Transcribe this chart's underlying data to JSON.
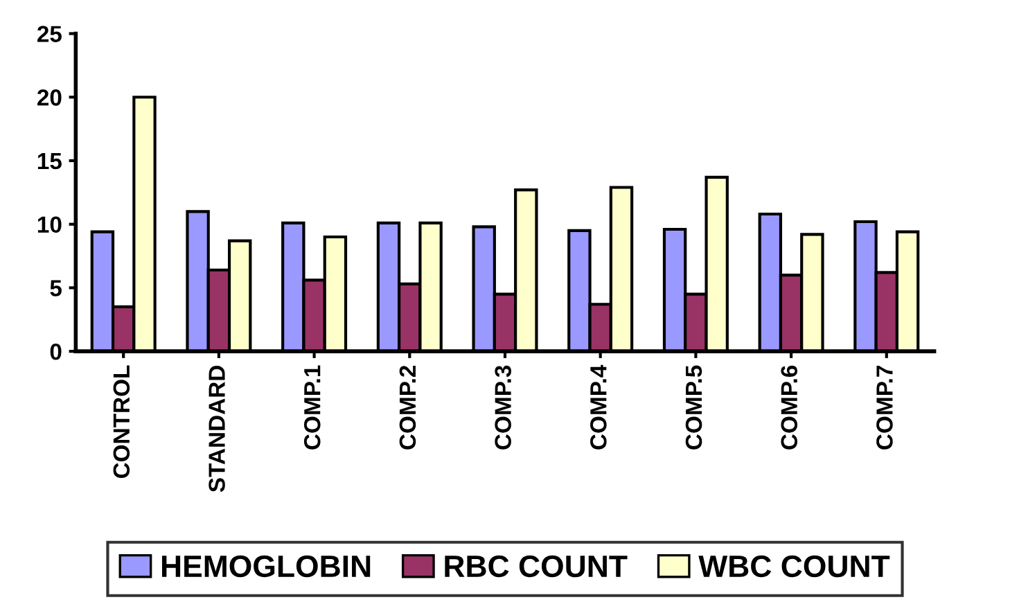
{
  "chart_data": {
    "type": "bar",
    "categories": [
      "CONTROL",
      "STANDARD",
      "COMP.1",
      "COMP.2",
      "COMP.3",
      "COMP.4",
      "COMP.5",
      "COMP.6",
      "COMP.7"
    ],
    "series": [
      {
        "name": "HEMOGLOBIN",
        "color": "#9999ff",
        "values": [
          9.4,
          11.0,
          10.1,
          10.1,
          9.8,
          9.5,
          9.6,
          10.8,
          10.2
        ]
      },
      {
        "name": "RBC COUNT",
        "color": "#993366",
        "values": [
          3.5,
          6.4,
          5.6,
          5.3,
          4.5,
          3.7,
          4.5,
          6.0,
          6.2
        ]
      },
      {
        "name": "WBC COUNT",
        "color": "#ffffcc",
        "values": [
          20.0,
          8.7,
          9.0,
          10.1,
          12.7,
          12.9,
          13.7,
          9.2,
          9.4
        ]
      }
    ],
    "ylim": [
      0,
      25
    ],
    "yticks": [
      0,
      5,
      10,
      15,
      20,
      25
    ],
    "grid": false,
    "legend": "bottom"
  }
}
